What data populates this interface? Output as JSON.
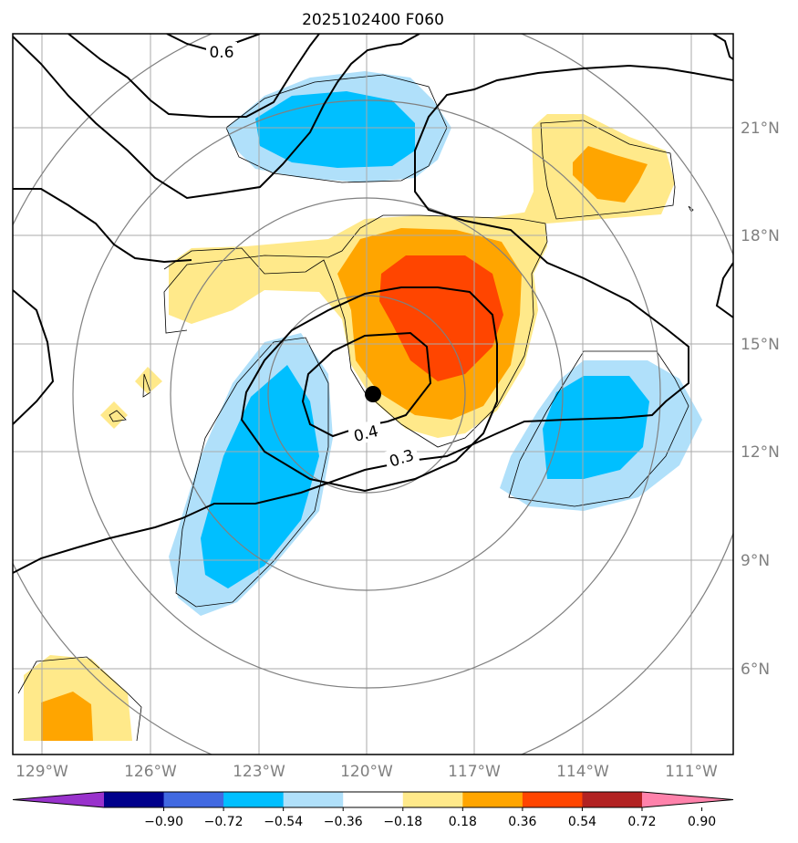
{
  "chart_data": {
    "type": "contour-map",
    "title": "2025102400 F060",
    "lon_ticks": [
      "129°W",
      "126°W",
      "123°W",
      "120°W",
      "117°W",
      "114°W",
      "111°W"
    ],
    "lat_ticks": [
      "21°N",
      "18°N",
      "15°N",
      "12°N",
      "9°N",
      "6°N"
    ],
    "lon_range": [
      -129.5,
      -109.5
    ],
    "lat_range": [
      3.5,
      23.5
    ],
    "storm_center": {
      "lon": -119.8,
      "lat": 13.6
    },
    "contour_labels": [
      "0.6",
      "0.4",
      "0.3"
    ],
    "colorbar": {
      "ticks": [
        "−0.90",
        "−0.72",
        "−0.54",
        "−0.36",
        "−0.18",
        "0.18",
        "0.36",
        "0.54",
        "0.72",
        "0.90"
      ],
      "colors": [
        "#9932cc",
        "#00008b",
        "#4169e1",
        "#00bfff",
        "#b0e0fa",
        "#ffffff",
        "#ffe98a",
        "#ffa500",
        "#ff4500",
        "#b22222",
        "#ff82ab"
      ]
    },
    "colors": {
      "neg_light": "#b0e0fa",
      "neg_mid": "#00bfff",
      "pos_light": "#ffe98a",
      "pos_mid": "#ffa500",
      "pos_strong": "#ff4500"
    }
  }
}
